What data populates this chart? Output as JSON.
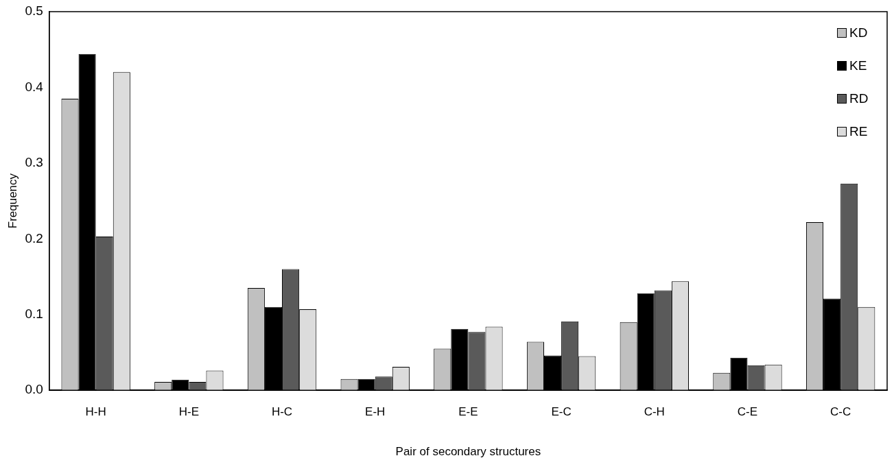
{
  "chart_data": {
    "type": "bar",
    "xlabel": "Pair of secondary structures",
    "ylabel": "Frequency",
    "categories": [
      "H-H",
      "H-E",
      "H-C",
      "E-H",
      "E-E",
      "E-C",
      "C-H",
      "C-E",
      "C-C"
    ],
    "series": [
      {
        "name": "KD",
        "color": "#c0c0c0",
        "values": [
          0.385,
          0.011,
          0.135,
          0.015,
          0.055,
          0.064,
          0.09,
          0.023,
          0.222
        ]
      },
      {
        "name": "KE",
        "color": "#000000",
        "values": [
          0.444,
          0.014,
          0.11,
          0.015,
          0.081,
          0.046,
          0.128,
          0.043,
          0.121
        ]
      },
      {
        "name": "RD",
        "color": "#5a5a5a",
        "values": [
          0.203,
          0.011,
          0.16,
          0.018,
          0.077,
          0.091,
          0.132,
          0.033,
          0.273
        ]
      },
      {
        "name": "RE",
        "color": "#dcdcdc",
        "values": [
          0.42,
          0.026,
          0.107,
          0.031,
          0.084,
          0.045,
          0.144,
          0.034,
          0.11
        ]
      }
    ],
    "ylim": [
      0,
      0.5
    ],
    "yticks": [
      {
        "value": 0,
        "label": "0.0"
      },
      0.1,
      0.2,
      0.3,
      0.4,
      0.5
    ],
    "legend": "top right"
  }
}
